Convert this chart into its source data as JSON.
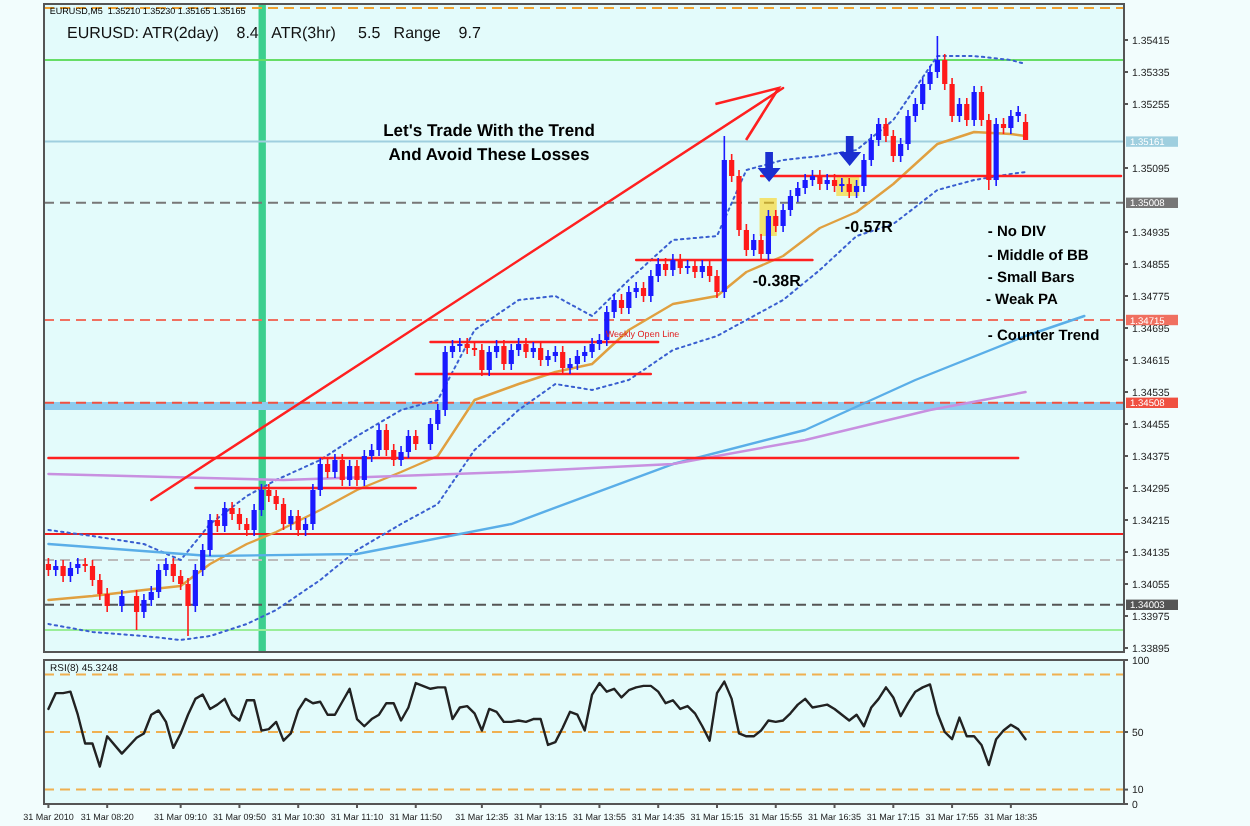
{
  "chart_data": [
    {
      "type": "candlestick",
      "tick_labels": "y",
      "xlim": [
        "2010-03-31T07:37",
        "2010-03-31T19:52"
      ],
      "ylim": [
        1.33885,
        1.35505
      ],
      "yticks": [
        1.35415,
        1.35335,
        1.35255,
        1.35095,
        1.34935,
        1.34855,
        1.34775,
        1.34695,
        1.34615,
        1.34535,
        1.34455,
        1.34375,
        1.34295,
        1.34215,
        1.34135,
        1.34055,
        1.33975,
        1.33895
      ],
      "x": [
        "2010-03-31T07:40",
        "2010-03-31T07:45",
        "2010-03-31T07:50",
        "2010-03-31T07:55",
        "2010-03-31T08:00",
        "2010-03-31T08:05",
        "2010-03-31T08:10",
        "2010-03-31T08:15",
        "2010-03-31T08:20",
        "2010-03-31T08:30",
        "2010-03-31T08:40",
        "2010-03-31T08:45",
        "2010-03-31T08:50",
        "2010-03-31T08:55",
        "2010-03-31T09:00",
        "2010-03-31T09:05",
        "2010-03-31T09:10",
        "2010-03-31T09:15",
        "2010-03-31T09:20",
        "2010-03-31T09:25",
        "2010-03-31T09:30",
        "2010-03-31T09:35",
        "2010-03-31T09:40",
        "2010-03-31T09:45",
        "2010-03-31T09:50",
        "2010-03-31T09:55",
        "2010-03-31T10:00",
        "2010-03-31T10:05",
        "2010-03-31T10:10",
        "2010-03-31T10:15",
        "2010-03-31T10:20",
        "2010-03-31T10:25",
        "2010-03-31T10:30",
        "2010-03-31T10:35",
        "2010-03-31T10:40",
        "2010-03-31T10:45",
        "2010-03-31T10:50",
        "2010-03-31T10:55",
        "2010-03-31T11:00",
        "2010-03-31T11:05",
        "2010-03-31T11:10",
        "2010-03-31T11:15",
        "2010-03-31T11:20",
        "2010-03-31T11:25",
        "2010-03-31T11:30",
        "2010-03-31T11:35",
        "2010-03-31T11:40",
        "2010-03-31T11:45",
        "2010-03-31T11:50",
        "2010-03-31T12:00",
        "2010-03-31T12:05",
        "2010-03-31T12:10",
        "2010-03-31T12:15",
        "2010-03-31T12:20",
        "2010-03-31T12:25",
        "2010-03-31T12:30",
        "2010-03-31T12:35",
        "2010-03-31T12:40",
        "2010-03-31T12:45",
        "2010-03-31T12:50",
        "2010-03-31T12:55",
        "2010-03-31T13:00",
        "2010-03-31T13:05",
        "2010-03-31T13:10",
        "2010-03-31T13:15",
        "2010-03-31T13:20",
        "2010-03-31T13:25",
        "2010-03-31T13:30",
        "2010-03-31T13:35",
        "2010-03-31T13:40",
        "2010-03-31T13:45",
        "2010-03-31T13:50",
        "2010-03-31T13:55",
        "2010-03-31T14:00",
        "2010-03-31T14:05",
        "2010-03-31T14:10",
        "2010-03-31T14:15",
        "2010-03-31T14:20",
        "2010-03-31T14:25",
        "2010-03-31T14:30",
        "2010-03-31T14:35",
        "2010-03-31T14:40",
        "2010-03-31T14:45",
        "2010-03-31T14:50",
        "2010-03-31T14:55",
        "2010-03-31T15:00",
        "2010-03-31T15:05",
        "2010-03-31T15:10",
        "2010-03-31T15:15",
        "2010-03-31T15:20",
        "2010-03-31T15:25",
        "2010-03-31T15:30",
        "2010-03-31T15:35",
        "2010-03-31T15:40",
        "2010-03-31T15:45",
        "2010-03-31T15:50",
        "2010-03-31T15:55",
        "2010-03-31T16:00",
        "2010-03-31T16:05",
        "2010-03-31T16:10",
        "2010-03-31T16:15",
        "2010-03-31T16:20",
        "2010-03-31T16:25",
        "2010-03-31T16:30",
        "2010-03-31T16:35",
        "2010-03-31T16:40",
        "2010-03-31T16:45",
        "2010-03-31T16:50",
        "2010-03-31T16:55",
        "2010-03-31T17:00",
        "2010-03-31T17:05",
        "2010-03-31T17:10",
        "2010-03-31T17:15",
        "2010-03-31T17:20",
        "2010-03-31T17:25",
        "2010-03-31T17:30",
        "2010-03-31T17:35",
        "2010-03-31T17:40",
        "2010-03-31T17:45",
        "2010-03-31T17:50",
        "2010-03-31T17:55",
        "2010-03-31T18:00",
        "2010-03-31T18:05",
        "2010-03-31T18:10",
        "2010-03-31T18:15",
        "2010-03-31T18:20",
        "2010-03-31T18:25",
        "2010-03-31T18:30",
        "2010-03-31T18:35",
        "2010-03-31T18:40",
        "2010-03-31T18:45"
      ],
      "ohlc": [
        [
          1.34105,
          1.3412,
          1.34075,
          1.3409
        ],
        [
          1.3409,
          1.34115,
          1.34075,
          1.341
        ],
        [
          1.341,
          1.34115,
          1.3406,
          1.34075
        ],
        [
          1.34075,
          1.3411,
          1.3406,
          1.34095
        ],
        [
          1.34095,
          1.3412,
          1.3408,
          1.34105
        ],
        [
          1.34105,
          1.3412,
          1.34085,
          1.341
        ],
        [
          1.341,
          1.34115,
          1.3405,
          1.34065
        ],
        [
          1.34065,
          1.3408,
          1.34015,
          1.3403
        ],
        [
          1.3403,
          1.34045,
          1.33985,
          1.34
        ],
        [
          1.34,
          1.3404,
          1.33985,
          1.34025
        ],
        [
          1.34025,
          1.3404,
          1.3394,
          1.33985
        ],
        [
          1.33985,
          1.3403,
          1.3397,
          1.34015
        ],
        [
          1.34015,
          1.3405,
          1.34,
          1.34035
        ],
        [
          1.34035,
          1.34105,
          1.3402,
          1.3409
        ],
        [
          1.3409,
          1.3412,
          1.34075,
          1.34105
        ],
        [
          1.34105,
          1.3412,
          1.3406,
          1.34075
        ],
        [
          1.34075,
          1.3409,
          1.3404,
          1.34055
        ],
        [
          1.34055,
          1.3407,
          1.33925,
          1.34
        ],
        [
          1.34,
          1.34105,
          1.33985,
          1.3409
        ],
        [
          1.3409,
          1.34155,
          1.34075,
          1.3414
        ],
        [
          1.3414,
          1.3423,
          1.34125,
          1.34215
        ],
        [
          1.34215,
          1.3423,
          1.34185,
          1.342
        ],
        [
          1.342,
          1.3426,
          1.34185,
          1.34245
        ],
        [
          1.34245,
          1.3426,
          1.34215,
          1.3423
        ],
        [
          1.3423,
          1.34245,
          1.3419,
          1.34205
        ],
        [
          1.34205,
          1.3422,
          1.34175,
          1.3419
        ],
        [
          1.3419,
          1.34255,
          1.34175,
          1.3424
        ],
        [
          1.3424,
          1.34305,
          1.34225,
          1.3429
        ],
        [
          1.3429,
          1.34305,
          1.3426,
          1.34275
        ],
        [
          1.34275,
          1.3429,
          1.3424,
          1.34255
        ],
        [
          1.34255,
          1.3427,
          1.3419,
          1.34205
        ],
        [
          1.34205,
          1.3424,
          1.3419,
          1.34225
        ],
        [
          1.34225,
          1.3424,
          1.34175,
          1.3419
        ],
        [
          1.3419,
          1.3422,
          1.34175,
          1.34205
        ],
        [
          1.34205,
          1.34305,
          1.3419,
          1.3429
        ],
        [
          1.3429,
          1.3437,
          1.34275,
          1.34355
        ],
        [
          1.34355,
          1.3437,
          1.3432,
          1.34335
        ],
        [
          1.34335,
          1.3438,
          1.3432,
          1.34365
        ],
        [
          1.34365,
          1.3438,
          1.343,
          1.34315
        ],
        [
          1.34315,
          1.34365,
          1.343,
          1.3435
        ],
        [
          1.3435,
          1.34365,
          1.343,
          1.34315
        ],
        [
          1.34315,
          1.3439,
          1.343,
          1.34375
        ],
        [
          1.34375,
          1.34405,
          1.3436,
          1.3439
        ],
        [
          1.3439,
          1.34455,
          1.34375,
          1.3444
        ],
        [
          1.3444,
          1.34455,
          1.34375,
          1.3439
        ],
        [
          1.3439,
          1.34405,
          1.3435,
          1.34365
        ],
        [
          1.34365,
          1.344,
          1.3435,
          1.34385
        ],
        [
          1.34385,
          1.3444,
          1.3437,
          1.34425
        ],
        [
          1.34425,
          1.3444,
          1.3439,
          1.34405
        ],
        [
          1.34405,
          1.3447,
          1.3439,
          1.34455
        ],
        [
          1.34455,
          1.34505,
          1.3444,
          1.3449
        ],
        [
          1.3449,
          1.3465,
          1.34475,
          1.34635
        ],
        [
          1.34635,
          1.34665,
          1.3462,
          1.3465
        ],
        [
          1.3465,
          1.3467,
          1.34635,
          1.34655
        ],
        [
          1.34655,
          1.3467,
          1.3463,
          1.34645
        ],
        [
          1.34645,
          1.3466,
          1.34625,
          1.3464
        ],
        [
          1.3464,
          1.34655,
          1.34575,
          1.3459
        ],
        [
          1.3459,
          1.3465,
          1.34575,
          1.34635
        ],
        [
          1.34635,
          1.34665,
          1.3462,
          1.3465
        ],
        [
          1.3465,
          1.34665,
          1.3459,
          1.34605
        ],
        [
          1.34605,
          1.34655,
          1.3459,
          1.3464
        ],
        [
          1.3464,
          1.3467,
          1.34625,
          1.34655
        ],
        [
          1.34655,
          1.3467,
          1.3462,
          1.34635
        ],
        [
          1.34635,
          1.3466,
          1.3462,
          1.34645
        ],
        [
          1.34645,
          1.3466,
          1.346,
          1.34615
        ],
        [
          1.34615,
          1.3464,
          1.346,
          1.34625
        ],
        [
          1.34625,
          1.3465,
          1.3461,
          1.34635
        ],
        [
          1.34635,
          1.3465,
          1.3458,
          1.34595
        ],
        [
          1.34595,
          1.3462,
          1.3458,
          1.34605
        ],
        [
          1.34605,
          1.3464,
          1.3459,
          1.34625
        ],
        [
          1.34625,
          1.3465,
          1.3461,
          1.34635
        ],
        [
          1.34635,
          1.3467,
          1.3462,
          1.34655
        ],
        [
          1.34655,
          1.3468,
          1.3464,
          1.34665
        ],
        [
          1.34665,
          1.3475,
          1.3465,
          1.34735
        ],
        [
          1.34735,
          1.3478,
          1.3472,
          1.34765
        ],
        [
          1.34765,
          1.3478,
          1.3473,
          1.34745
        ],
        [
          1.34745,
          1.348,
          1.3473,
          1.34785
        ],
        [
          1.34785,
          1.3481,
          1.3477,
          1.34795
        ],
        [
          1.34795,
          1.3481,
          1.3476,
          1.34775
        ],
        [
          1.34775,
          1.3484,
          1.3476,
          1.34825
        ],
        [
          1.34825,
          1.3487,
          1.3481,
          1.34855
        ],
        [
          1.34855,
          1.3487,
          1.34825,
          1.3484
        ],
        [
          1.3484,
          1.3488,
          1.34825,
          1.34865
        ],
        [
          1.34865,
          1.3488,
          1.3483,
          1.34845
        ],
        [
          1.34845,
          1.34865,
          1.3483,
          1.3485
        ],
        [
          1.3485,
          1.34865,
          1.3482,
          1.34835
        ],
        [
          1.34835,
          1.34865,
          1.3482,
          1.3485
        ],
        [
          1.3485,
          1.34865,
          1.3481,
          1.34825
        ],
        [
          1.34825,
          1.3484,
          1.3477,
          1.34785
        ],
        [
          1.34785,
          1.35175,
          1.3477,
          1.35115
        ],
        [
          1.35115,
          1.3513,
          1.3506,
          1.35075
        ],
        [
          1.35075,
          1.3509,
          1.34925,
          1.3494
        ],
        [
          1.3494,
          1.34955,
          1.34875,
          1.3489
        ],
        [
          1.3489,
          1.3493,
          1.34875,
          1.34915
        ],
        [
          1.34915,
          1.3493,
          1.34865,
          1.3488
        ],
        [
          1.3488,
          1.3499,
          1.34865,
          1.34975
        ],
        [
          1.34975,
          1.3499,
          1.34935,
          1.3495
        ],
        [
          1.3495,
          1.35005,
          1.34935,
          1.3499
        ],
        [
          1.3499,
          1.3504,
          1.34975,
          1.35025
        ],
        [
          1.35025,
          1.3506,
          1.3501,
          1.35045
        ],
        [
          1.35045,
          1.3508,
          1.3503,
          1.35065
        ],
        [
          1.35065,
          1.3509,
          1.3505,
          1.35075
        ],
        [
          1.35075,
          1.3509,
          1.3504,
          1.35055
        ],
        [
          1.35055,
          1.3508,
          1.3504,
          1.35065
        ],
        [
          1.35065,
          1.3508,
          1.35035,
          1.3505
        ],
        [
          1.3505,
          1.3507,
          1.35035,
          1.35055
        ],
        [
          1.35055,
          1.3507,
          1.3502,
          1.35035
        ],
        [
          1.35035,
          1.35065,
          1.3502,
          1.3505
        ],
        [
          1.3505,
          1.3513,
          1.35035,
          1.35115
        ],
        [
          1.35115,
          1.3518,
          1.351,
          1.35165
        ],
        [
          1.35165,
          1.3522,
          1.3515,
          1.35205
        ],
        [
          1.35205,
          1.3522,
          1.3516,
          1.35175
        ],
        [
          1.35175,
          1.3519,
          1.3511,
          1.35125
        ],
        [
          1.35125,
          1.3517,
          1.3511,
          1.35155
        ],
        [
          1.35155,
          1.3524,
          1.3514,
          1.35225
        ],
        [
          1.35225,
          1.3527,
          1.3521,
          1.35255
        ],
        [
          1.35255,
          1.3532,
          1.3524,
          1.35305
        ],
        [
          1.35305,
          1.3535,
          1.3529,
          1.35335
        ],
        [
          1.35335,
          1.35425,
          1.3532,
          1.35365
        ],
        [
          1.35365,
          1.3538,
          1.3529,
          1.35305
        ],
        [
          1.35305,
          1.3532,
          1.3521,
          1.35225
        ],
        [
          1.35225,
          1.3527,
          1.3521,
          1.35255
        ],
        [
          1.35255,
          1.3527,
          1.352,
          1.35215
        ],
        [
          1.35215,
          1.353,
          1.352,
          1.35285
        ],
        [
          1.35285,
          1.353,
          1.352,
          1.35215
        ],
        [
          1.35215,
          1.3523,
          1.3504,
          1.35065
        ],
        [
          1.35065,
          1.3522,
          1.3505,
          1.35205
        ],
        [
          1.35205,
          1.3522,
          1.3518,
          1.35195
        ],
        [
          1.35195,
          1.3524,
          1.3518,
          1.35225
        ],
        [
          1.35225,
          1.3525,
          1.3521,
          1.35235
        ],
        [
          1.3521,
          1.3523,
          1.35165,
          1.35165
        ]
      ],
      "series": [
        {
          "type": "line",
          "color": "#e0a040",
          "line_style": "solid",
          "x": [
            "2010-03-31T07:40",
            "2010-03-31T08:10",
            "2010-03-31T08:45",
            "2010-03-31T09:10",
            "2010-03-31T09:30",
            "2010-03-31T09:55",
            "2010-03-31T10:15",
            "2010-03-31T10:45",
            "2010-03-31T11:10",
            "2010-03-31T11:40",
            "2010-03-31T12:05",
            "2010-03-31T12:30",
            "2010-03-31T13:00",
            "2010-03-31T13:25",
            "2010-03-31T13:50",
            "2010-03-31T14:15",
            "2010-03-31T14:45",
            "2010-03-31T15:15",
            "2010-03-31T15:35",
            "2010-03-31T16:00",
            "2010-03-31T16:25",
            "2010-03-31T16:50",
            "2010-03-31T17:15",
            "2010-03-31T17:45",
            "2010-03-31T18:10",
            "2010-03-31T18:35",
            "2010-03-31T18:45"
          ],
          "values": [
            1.34015,
            1.34025,
            1.3404,
            1.3405,
            1.34105,
            1.34155,
            1.34185,
            1.3424,
            1.3429,
            1.34335,
            1.34375,
            1.34515,
            1.34555,
            1.34585,
            1.34605,
            1.3469,
            1.34755,
            1.34775,
            1.34835,
            1.34875,
            1.34945,
            1.34985,
            1.35055,
            1.35155,
            1.35185,
            1.3518,
            1.35175
          ]
        },
        {
          "type": "line",
          "color": "#3a5fd0",
          "line_style": "dotted",
          "x": [
            "2010-03-31T07:40",
            "2010-03-31T08:10",
            "2010-03-31T08:45",
            "2010-03-31T09:10",
            "2010-03-31T09:30",
            "2010-03-31T09:55",
            "2010-03-31T10:15",
            "2010-03-31T10:45",
            "2010-03-31T11:10",
            "2010-03-31T11:40",
            "2010-03-31T12:05",
            "2010-03-31T12:30",
            "2010-03-31T13:00",
            "2010-03-31T13:25",
            "2010-03-31T13:50",
            "2010-03-31T14:15",
            "2010-03-31T14:45",
            "2010-03-31T15:15",
            "2010-03-31T15:35",
            "2010-03-31T16:00",
            "2010-03-31T16:25",
            "2010-03-31T16:50",
            "2010-03-31T17:15",
            "2010-03-31T17:45",
            "2010-03-31T18:10",
            "2010-03-31T18:35",
            "2010-03-31T18:45"
          ],
          "values": [
            1.3419,
            1.34175,
            1.34155,
            1.34115,
            1.34205,
            1.34275,
            1.34315,
            1.34365,
            1.34425,
            1.3449,
            1.34515,
            1.3469,
            1.34765,
            1.34775,
            1.34725,
            1.34815,
            1.34915,
            1.34925,
            1.3509,
            1.35115,
            1.35125,
            1.3514,
            1.35215,
            1.35375,
            1.35375,
            1.35365,
            1.35355
          ]
        },
        {
          "type": "line",
          "color": "#3a5fd0",
          "line_style": "dotted",
          "x": [
            "2010-03-31T07:40",
            "2010-03-31T08:10",
            "2010-03-31T08:45",
            "2010-03-31T09:10",
            "2010-03-31T09:30",
            "2010-03-31T09:55",
            "2010-03-31T10:15",
            "2010-03-31T10:45",
            "2010-03-31T11:10",
            "2010-03-31T11:40",
            "2010-03-31T12:05",
            "2010-03-31T12:30",
            "2010-03-31T13:00",
            "2010-03-31T13:25",
            "2010-03-31T13:50",
            "2010-03-31T14:15",
            "2010-03-31T14:45",
            "2010-03-31T15:15",
            "2010-03-31T15:35",
            "2010-03-31T16:00",
            "2010-03-31T16:25",
            "2010-03-31T16:50",
            "2010-03-31T17:15",
            "2010-03-31T17:45",
            "2010-03-31T18:10",
            "2010-03-31T18:35",
            "2010-03-31T18:45"
          ],
          "values": [
            1.33955,
            1.33935,
            1.33925,
            1.33915,
            1.33925,
            1.33955,
            1.3399,
            1.34065,
            1.3414,
            1.34205,
            1.34255,
            1.3439,
            1.3449,
            1.34555,
            1.3454,
            1.34565,
            1.3464,
            1.34675,
            1.34715,
            1.34765,
            1.3484,
            1.34925,
            1.34955,
            1.3504,
            1.35065,
            1.3508,
            1.35085
          ]
        },
        {
          "type": "line",
          "color": "#5aaee8",
          "line_style": "solid",
          "x": [
            "2010-03-31T07:40",
            "2010-03-31T09:30",
            "2010-03-31T11:10",
            "2010-03-31T12:55",
            "2010-03-31T14:45",
            "2010-03-31T16:15",
            "2010-03-31T17:30",
            "2010-03-31T18:45",
            "2010-03-31T19:25"
          ],
          "values": [
            1.34155,
            1.34125,
            1.3413,
            1.34205,
            1.34355,
            1.3444,
            1.34565,
            1.34675,
            1.34725
          ]
        },
        {
          "type": "line",
          "color": "#c890e0",
          "line_style": "solid",
          "x": [
            "2010-03-31T07:40",
            "2010-03-31T10:20",
            "2010-03-31T12:55",
            "2010-03-31T14:45",
            "2010-03-31T16:15",
            "2010-03-31T17:40",
            "2010-03-31T18:45"
          ],
          "values": [
            1.3433,
            1.34315,
            1.34335,
            1.34355,
            1.34415,
            1.3449,
            1.34535
          ]
        },
        {
          "type": "line",
          "color": "#ff2020",
          "line_style": "solid",
          "x": [
            "2010-03-31T09:20",
            "2010-03-31T11:50"
          ],
          "values": [
            1.34295,
            1.34295
          ]
        },
        {
          "type": "line",
          "color": "#ff2020",
          "line_style": "solid",
          "x": [
            "2010-03-31T12:00",
            "2010-03-31T14:35"
          ],
          "values": [
            1.3466,
            1.3466
          ]
        },
        {
          "type": "line",
          "color": "#ff2020",
          "line_style": "solid",
          "x": [
            "2010-03-31T11:50",
            "2010-03-31T14:30"
          ],
          "values": [
            1.3458,
            1.3458
          ]
        },
        {
          "type": "line",
          "color": "#ff2020",
          "line_style": "solid",
          "x": [
            "2010-03-31T14:20",
            "2010-03-31T16:20"
          ],
          "values": [
            1.34865,
            1.34865
          ]
        },
        {
          "type": "line",
          "color": "#ff2020",
          "line_style": "solid",
          "x": [
            "2010-03-31T15:45",
            "2010-03-31T19:50"
          ],
          "values": [
            1.35075,
            1.35075
          ]
        },
        {
          "type": "line",
          "color": "#ff2020",
          "line_style": "solid",
          "x": [
            "2010-03-31T07:40",
            "2010-03-31T18:40"
          ],
          "values": [
            1.3437,
            1.3437
          ]
        },
        {
          "type": "line",
          "color": "#ff2020",
          "line_style": "solid",
          "x": [
            "2010-03-31T08:50",
            "2010-03-31T16:00"
          ],
          "values": [
            1.34265,
            1.35295
          ]
        }
      ],
      "ref_lines": [
        {
          "axis": "y",
          "value": 1.35495,
          "color": "#f0a030",
          "line_style": "dashed"
        },
        {
          "axis": "y",
          "value": 1.35365,
          "color": "#66dd66",
          "line_style": "solid"
        },
        {
          "axis": "y",
          "value": 1.35161,
          "label": "1.35161",
          "color": "#9fcfdf",
          "line_style": "solid"
        },
        {
          "axis": "y",
          "value": 1.35008,
          "label": "1.35008",
          "color": "#777777",
          "line_style": "dashed"
        },
        {
          "axis": "y",
          "value": 1.34715,
          "label": "1.34715",
          "color": "#f07060",
          "line_style": "dashed"
        },
        {
          "axis": "y",
          "value": 1.34508,
          "label": "1.34508",
          "color": "#f05040",
          "line_style": "dashed"
        },
        {
          "axis": "y",
          "value": 1.3418,
          "color": "#ee2020",
          "line_style": "solid"
        },
        {
          "axis": "y",
          "value": 1.34115,
          "color": "#bbbbbb",
          "line_style": "dashed"
        },
        {
          "axis": "y",
          "value": 1.34003,
          "label": "1.34003",
          "color": "#555555",
          "line_style": "dashed"
        },
        {
          "axis": "y",
          "value": 1.3394,
          "color": "#99ee99",
          "line_style": "solid"
        }
      ],
      "bands": [
        {
          "axis": "x",
          "from": "2010-03-31T10:03",
          "to": "2010-03-31T10:08",
          "color": "#3ccf8e"
        },
        {
          "axis": "y",
          "from": 1.3449,
          "to": 1.3451,
          "color": "#8ccbee"
        }
      ],
      "annotations": [
        "EURUSD,M5  1.35210 1.35230 1.35165 1.35165",
        "EURUSD: ATR(2day)    8.4   ATR(3hr)     5.5   Range    9.7",
        "Let's Trade With the Trend",
        "And Avoid These Losses",
        "Weekly Open Line",
        "-0.38R",
        "-0.57R",
        "- No DIV",
        "- Middle of BB",
        "- Small Bars",
        "- Weak PA",
        "- Counter Trend"
      ]
    },
    {
      "type": "line",
      "title": "RSI(8) 45.3248",
      "color": "#222222",
      "xlim": [
        "2010-03-31T07:37",
        "2010-03-31T19:52"
      ],
      "ylim": [
        0,
        100
      ],
      "yticks": [
        100,
        50,
        10,
        0
      ],
      "xticks": [
        {
          "value": "2010-03-31T07:40",
          "label": "31 Mar 2010"
        },
        {
          "value": "2010-03-31T08:20",
          "label": "31 Mar 08:20"
        },
        {
          "value": "2010-03-31T09:10",
          "label": "31 Mar 09:10"
        },
        {
          "value": "2010-03-31T09:50",
          "label": "31 Mar 09:50"
        },
        {
          "value": "2010-03-31T10:30",
          "label": "31 Mar 10:30"
        },
        {
          "value": "2010-03-31T11:10",
          "label": "31 Mar 11:10"
        },
        {
          "value": "2010-03-31T11:50",
          "label": "31 Mar 11:50"
        },
        {
          "value": "2010-03-31T12:35",
          "label": "31 Mar 12:35"
        },
        {
          "value": "2010-03-31T13:15",
          "label": "31 Mar 13:15"
        },
        {
          "value": "2010-03-31T13:55",
          "label": "31 Mar 13:55"
        },
        {
          "value": "2010-03-31T14:35",
          "label": "31 Mar 14:35"
        },
        {
          "value": "2010-03-31T15:15",
          "label": "31 Mar 15:15"
        },
        {
          "value": "2010-03-31T15:55",
          "label": "31 Mar 15:55"
        },
        {
          "value": "2010-03-31T16:35",
          "label": "31 Mar 16:35"
        },
        {
          "value": "2010-03-31T17:15",
          "label": "31 Mar 17:15"
        },
        {
          "value": "2010-03-31T17:55",
          "label": "31 Mar 17:55"
        },
        {
          "value": "2010-03-31T18:35",
          "label": "31 Mar 18:35"
        }
      ],
      "ref_lines": [
        {
          "axis": "y",
          "value": 90,
          "color": "#f0b050",
          "line_style": "dashed"
        },
        {
          "axis": "y",
          "value": 50,
          "color": "#f0b050",
          "line_style": "dashed"
        },
        {
          "axis": "y",
          "value": 10,
          "color": "#f0b050",
          "line_style": "dashed"
        }
      ],
      "x": [
        "2010-03-31T07:40",
        "2010-03-31T07:45",
        "2010-03-31T07:50",
        "2010-03-31T07:55",
        "2010-03-31T08:00",
        "2010-03-31T08:05",
        "2010-03-31T08:10",
        "2010-03-31T08:15",
        "2010-03-31T08:20",
        "2010-03-31T08:30",
        "2010-03-31T08:40",
        "2010-03-31T08:45",
        "2010-03-31T08:50",
        "2010-03-31T08:55",
        "2010-03-31T09:00",
        "2010-03-31T09:05",
        "2010-03-31T09:10",
        "2010-03-31T09:15",
        "2010-03-31T09:20",
        "2010-03-31T09:25",
        "2010-03-31T09:30",
        "2010-03-31T09:35",
        "2010-03-31T09:40",
        "2010-03-31T09:45",
        "2010-03-31T09:50",
        "2010-03-31T09:55",
        "2010-03-31T10:00",
        "2010-03-31T10:05",
        "2010-03-31T10:10",
        "2010-03-31T10:15",
        "2010-03-31T10:20",
        "2010-03-31T10:25",
        "2010-03-31T10:30",
        "2010-03-31T10:35",
        "2010-03-31T10:40",
        "2010-03-31T10:45",
        "2010-03-31T10:50",
        "2010-03-31T10:55",
        "2010-03-31T11:00",
        "2010-03-31T11:05",
        "2010-03-31T11:10",
        "2010-03-31T11:15",
        "2010-03-31T11:20",
        "2010-03-31T11:25",
        "2010-03-31T11:30",
        "2010-03-31T11:35",
        "2010-03-31T11:40",
        "2010-03-31T11:45",
        "2010-03-31T11:50",
        "2010-03-31T12:00",
        "2010-03-31T12:05",
        "2010-03-31T12:10",
        "2010-03-31T12:15",
        "2010-03-31T12:20",
        "2010-03-31T12:25",
        "2010-03-31T12:30",
        "2010-03-31T12:35",
        "2010-03-31T12:40",
        "2010-03-31T12:45",
        "2010-03-31T12:50",
        "2010-03-31T12:55",
        "2010-03-31T13:00",
        "2010-03-31T13:05",
        "2010-03-31T13:10",
        "2010-03-31T13:15",
        "2010-03-31T13:20",
        "2010-03-31T13:25",
        "2010-03-31T13:30",
        "2010-03-31T13:35",
        "2010-03-31T13:40",
        "2010-03-31T13:45",
        "2010-03-31T13:50",
        "2010-03-31T13:55",
        "2010-03-31T14:00",
        "2010-03-31T14:05",
        "2010-03-31T14:10",
        "2010-03-31T14:15",
        "2010-03-31T14:20",
        "2010-03-31T14:25",
        "2010-03-31T14:30",
        "2010-03-31T14:35",
        "2010-03-31T14:40",
        "2010-03-31T14:45",
        "2010-03-31T14:50",
        "2010-03-31T14:55",
        "2010-03-31T15:00",
        "2010-03-31T15:05",
        "2010-03-31T15:10",
        "2010-03-31T15:15",
        "2010-03-31T15:20",
        "2010-03-31T15:25",
        "2010-03-31T15:30",
        "2010-03-31T15:35",
        "2010-03-31T15:40",
        "2010-03-31T15:45",
        "2010-03-31T15:50",
        "2010-03-31T15:55",
        "2010-03-31T16:00",
        "2010-03-31T16:05",
        "2010-03-31T16:10",
        "2010-03-31T16:15",
        "2010-03-31T16:20",
        "2010-03-31T16:25",
        "2010-03-31T16:30",
        "2010-03-31T16:35",
        "2010-03-31T16:40",
        "2010-03-31T16:45",
        "2010-03-31T16:50",
        "2010-03-31T16:55",
        "2010-03-31T17:00",
        "2010-03-31T17:05",
        "2010-03-31T17:10",
        "2010-03-31T17:15",
        "2010-03-31T17:20",
        "2010-03-31T17:25",
        "2010-03-31T17:30",
        "2010-03-31T17:35",
        "2010-03-31T17:40",
        "2010-03-31T17:45",
        "2010-03-31T17:50",
        "2010-03-31T17:55",
        "2010-03-31T18:00",
        "2010-03-31T18:05",
        "2010-03-31T18:10",
        "2010-03-31T18:15",
        "2010-03-31T18:20",
        "2010-03-31T18:25",
        "2010-03-31T18:30",
        "2010-03-31T18:35",
        "2010-03-31T18:40",
        "2010-03-31T18:45"
      ],
      "values": [
        66,
        77,
        77,
        78,
        62,
        42,
        42,
        26,
        47,
        35,
        46,
        49,
        62,
        65,
        57,
        39,
        49,
        62,
        73,
        76,
        66,
        69,
        73,
        62,
        58,
        72,
        72,
        51,
        52,
        57,
        44,
        49,
        65,
        73,
        70,
        71,
        62,
        62,
        71,
        80,
        59,
        54,
        59,
        62,
        70,
        70,
        58,
        67,
        84,
        80,
        81,
        81,
        59,
        67,
        68,
        63,
        51,
        66,
        64,
        57,
        57,
        58,
        57,
        59,
        59,
        41,
        43,
        53,
        64,
        62,
        51,
        76,
        84,
        78,
        80,
        74,
        79,
        81,
        82,
        82,
        78,
        70,
        72,
        66,
        68,
        63,
        54,
        44,
        77,
        85,
        73,
        49,
        47,
        47,
        51,
        58,
        57,
        58,
        63,
        69,
        73,
        67,
        68,
        69,
        66,
        62,
        58,
        62,
        54,
        67,
        73,
        81,
        74,
        61,
        70,
        78,
        81,
        83,
        63,
        50,
        45,
        60,
        47,
        47,
        41,
        27,
        45,
        51,
        55,
        52,
        45
      ]
    }
  ]
}
